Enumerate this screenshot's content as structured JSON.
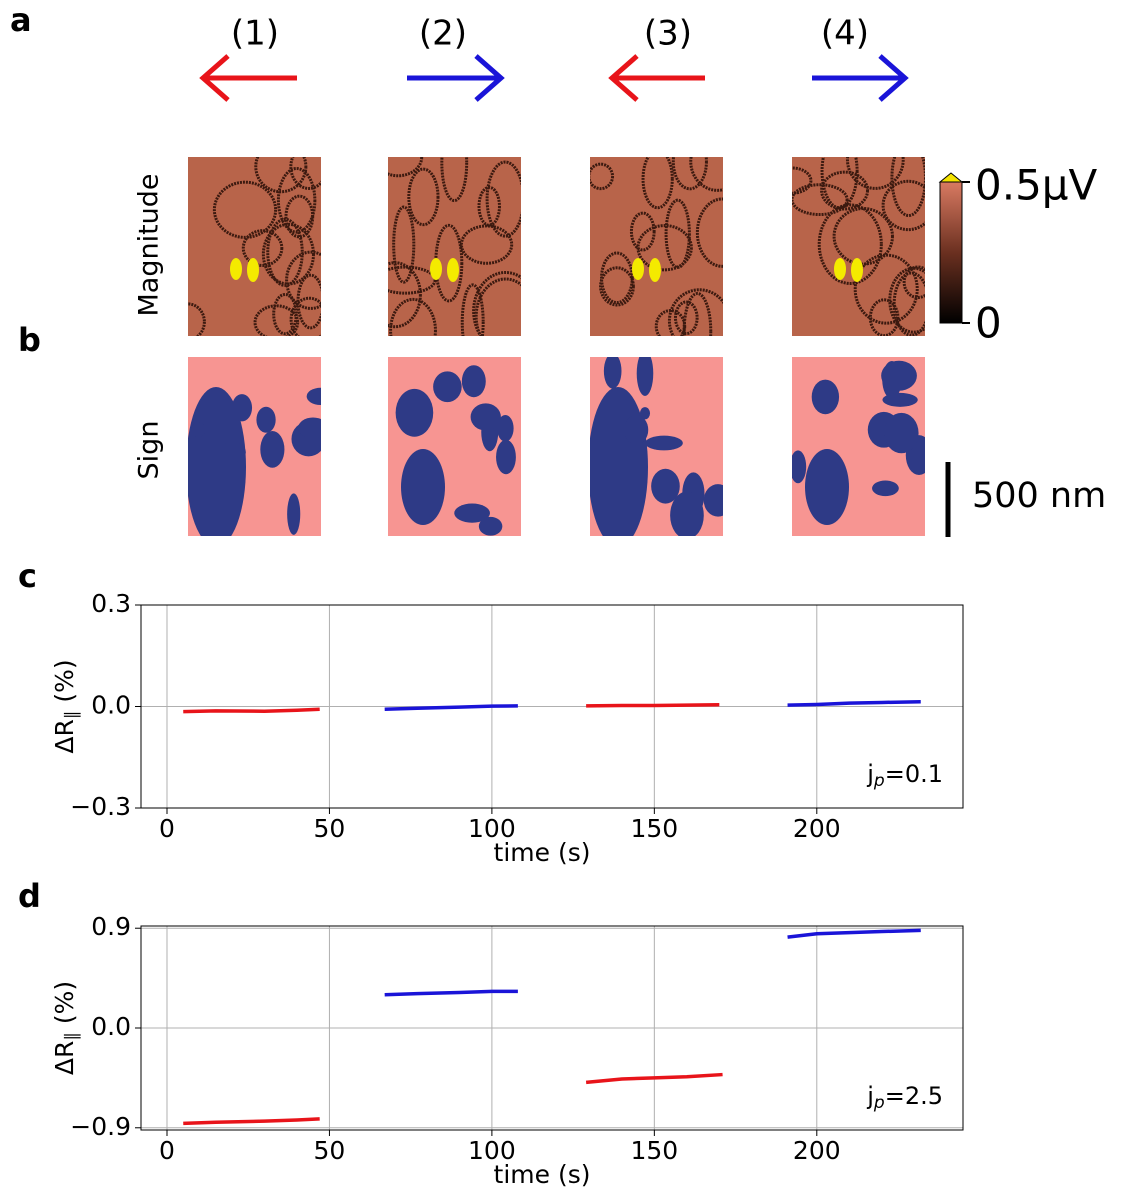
{
  "figure": {
    "panel_labels": [
      "a",
      "b",
      "c",
      "d"
    ],
    "steps": [
      "(1)",
      "(2)",
      "(3)",
      "(4)"
    ],
    "row_labels": [
      "Magnitude",
      "Sign"
    ],
    "colorbar_labels": [
      "0.5μV",
      "0"
    ],
    "scale_bar": "500 nm"
  },
  "chart_data": [
    {
      "type": "line",
      "xlabel": "time (s)",
      "ylabel": {
        "main": "ΔR",
        "sub": "∥",
        "rest": " (%)"
      },
      "annotation": {
        "main": "j",
        "sub": "p",
        "rest": "=0.1"
      },
      "xlim": [
        -8,
        245
      ],
      "ylim": [
        -0.3,
        0.3
      ],
      "xticks": [
        0,
        50,
        100,
        150,
        200
      ],
      "yticks": [
        {
          "value": -0.3,
          "label": "−0.3"
        },
        {
          "value": 0,
          "label": "0.0"
        },
        0.3
      ],
      "grid": true,
      "series": [
        {
          "color": "#e8141a",
          "x": [
            5,
            15,
            30,
            40,
            47
          ],
          "values": [
            -0.015,
            -0.013,
            -0.014,
            -0.011,
            -0.008
          ]
        },
        {
          "color": "#1a14d8",
          "x": [
            67,
            77,
            90,
            100,
            108
          ],
          "values": [
            -0.008,
            -0.005,
            -0.002,
            0.001,
            0.002
          ]
        },
        {
          "color": "#e8141a",
          "x": [
            129,
            140,
            150,
            160,
            170
          ],
          "values": [
            0.002,
            0.003,
            0.003,
            0.004,
            0.005
          ]
        },
        {
          "color": "#1a14d8",
          "x": [
            191,
            200,
            210,
            220,
            232
          ],
          "values": [
            0.004,
            0.006,
            0.01,
            0.012,
            0.014
          ]
        }
      ]
    },
    {
      "type": "line",
      "xlabel": "time (s)",
      "ylabel": {
        "main": "ΔR",
        "sub": "∥",
        "rest": " (%)"
      },
      "annotation": {
        "main": "j",
        "sub": "p",
        "rest": "=2.5"
      },
      "xlim": [
        -8,
        245
      ],
      "ylim": [
        -0.92,
        0.92
      ],
      "xticks": [
        0,
        50,
        100,
        150,
        200
      ],
      "yticks": [
        {
          "value": -0.9,
          "label": "−0.9"
        },
        {
          "value": 0,
          "label": "0.0"
        },
        0.9
      ],
      "grid": true,
      "series": [
        {
          "color": "#e8141a",
          "x": [
            5,
            15,
            30,
            40,
            47
          ],
          "values": [
            -0.86,
            -0.85,
            -0.84,
            -0.83,
            -0.82
          ]
        },
        {
          "color": "#1a14d8",
          "x": [
            67,
            77,
            90,
            100,
            108
          ],
          "values": [
            0.3,
            0.31,
            0.32,
            0.33,
            0.33
          ]
        },
        {
          "color": "#e8141a",
          "x": [
            129,
            140,
            150,
            160,
            171
          ],
          "values": [
            -0.49,
            -0.46,
            -0.45,
            -0.44,
            -0.42
          ]
        },
        {
          "color": "#1a14d8",
          "x": [
            191,
            200,
            210,
            220,
            232
          ],
          "values": [
            0.82,
            0.85,
            0.86,
            0.87,
            0.88
          ]
        }
      ]
    }
  ]
}
